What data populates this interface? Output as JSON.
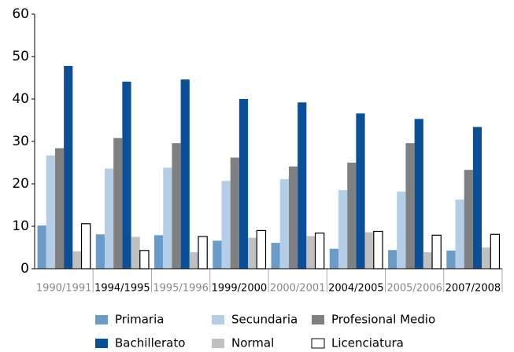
{
  "chart_data": {
    "type": "bar",
    "categories": [
      "1990/1991",
      "1994/1995",
      "1995/1996",
      "1999/2000",
      "2000/2001",
      "2004/2005",
      "2005/2006",
      "2007/2008"
    ],
    "series": [
      {
        "name": "Primaria",
        "color": "#6b9bc9",
        "values": [
          10.2,
          8.1,
          7.9,
          6.6,
          6.1,
          4.7,
          4.4,
          4.3
        ]
      },
      {
        "name": "Secundaria",
        "color": "#b5cee7",
        "values": [
          26.7,
          23.6,
          23.8,
          20.7,
          21.1,
          18.5,
          18.2,
          16.3
        ]
      },
      {
        "name": "Profesional Medio",
        "color": "#808080",
        "values": [
          28.4,
          30.8,
          29.6,
          26.2,
          24.1,
          25.0,
          29.6,
          23.3
        ]
      },
      {
        "name": "Bachillerato",
        "color": "#0b4f97",
        "values": [
          47.8,
          44.1,
          44.6,
          40.0,
          39.2,
          36.6,
          35.3,
          33.4
        ]
      },
      {
        "name": "Normal",
        "color": "#c0c0c0",
        "values": [
          4.1,
          7.5,
          3.9,
          7.3,
          7.7,
          8.6,
          3.9,
          5.0
        ]
      },
      {
        "name": "Licenciatura",
        "color": "#ffffff",
        "values": [
          10.6,
          4.3,
          7.6,
          9.0,
          8.4,
          8.8,
          7.9,
          8.1
        ]
      }
    ],
    "ylim": [
      0,
      60
    ],
    "yticks": [
      0,
      10,
      20,
      30,
      40,
      50,
      60
    ],
    "grid": false
  }
}
